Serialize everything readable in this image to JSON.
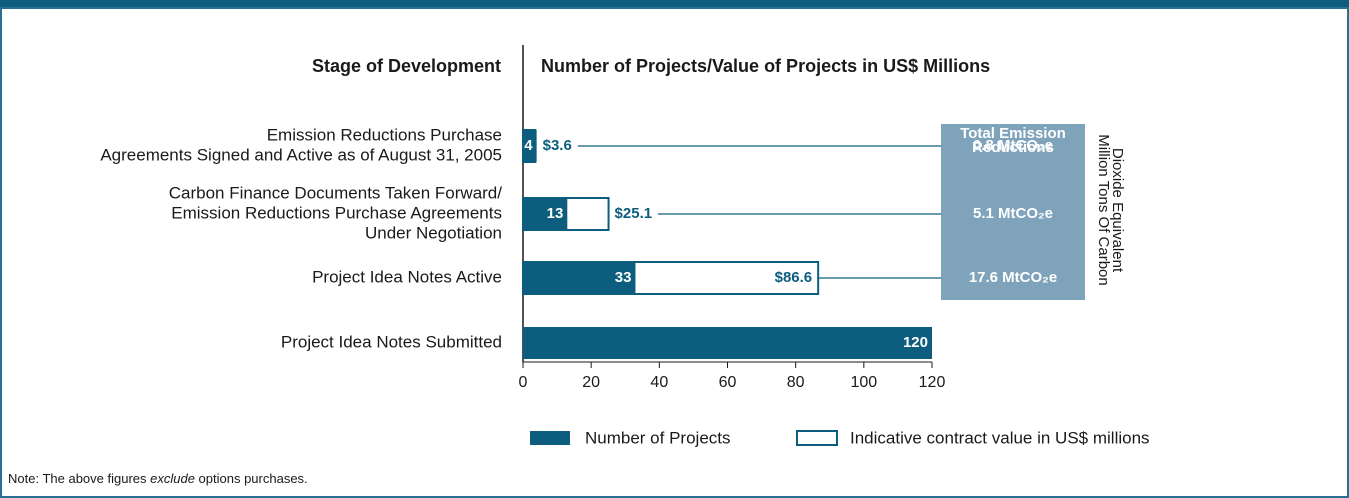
{
  "chart_data": {
    "type": "bar",
    "header_left": "Stage of Development",
    "title": "Number of Projects/Value of Projects in US$ Millions",
    "categories": [
      [
        "Emission Reductions Purchase",
        "Agreements Signed and Active as of August 31, 2005"
      ],
      [
        "Carbon Finance Documents Taken Forward/",
        "Emission Reductions Purchase Agreements",
        "Under Negotiation"
      ],
      [
        "Project Idea Notes Active"
      ],
      [
        "Project Idea Notes Submitted"
      ]
    ],
    "series": [
      {
        "name": "Number of Projects",
        "color": "#0d5e7e",
        "values": [
          4,
          13,
          33,
          120
        ]
      },
      {
        "name": "Indicative contract value in US$ millions",
        "color": "#ffffff",
        "values": [
          3.6,
          25.1,
          86.6,
          null
        ],
        "value_labels": [
          "$3.6",
          "$25.1",
          "$86.6",
          null
        ]
      }
    ],
    "xlim": [
      0,
      120
    ],
    "xticks": [
      0,
      20,
      40,
      60,
      80,
      100,
      120
    ],
    "emission_box_title": [
      "Total Emission",
      "Reductions"
    ],
    "emission_labels": [
      "0.8 MtCO₂e",
      "5.1 MtCO₂e",
      "17.6 MtCO₂e",
      null
    ],
    "emission_axis_label": [
      "Million Tons Of Carbon",
      "Dioxide Equivalent"
    ],
    "note": {
      "before": "Note: The above figures ",
      "emphasis": "exclude",
      "after": " options purchases."
    }
  }
}
